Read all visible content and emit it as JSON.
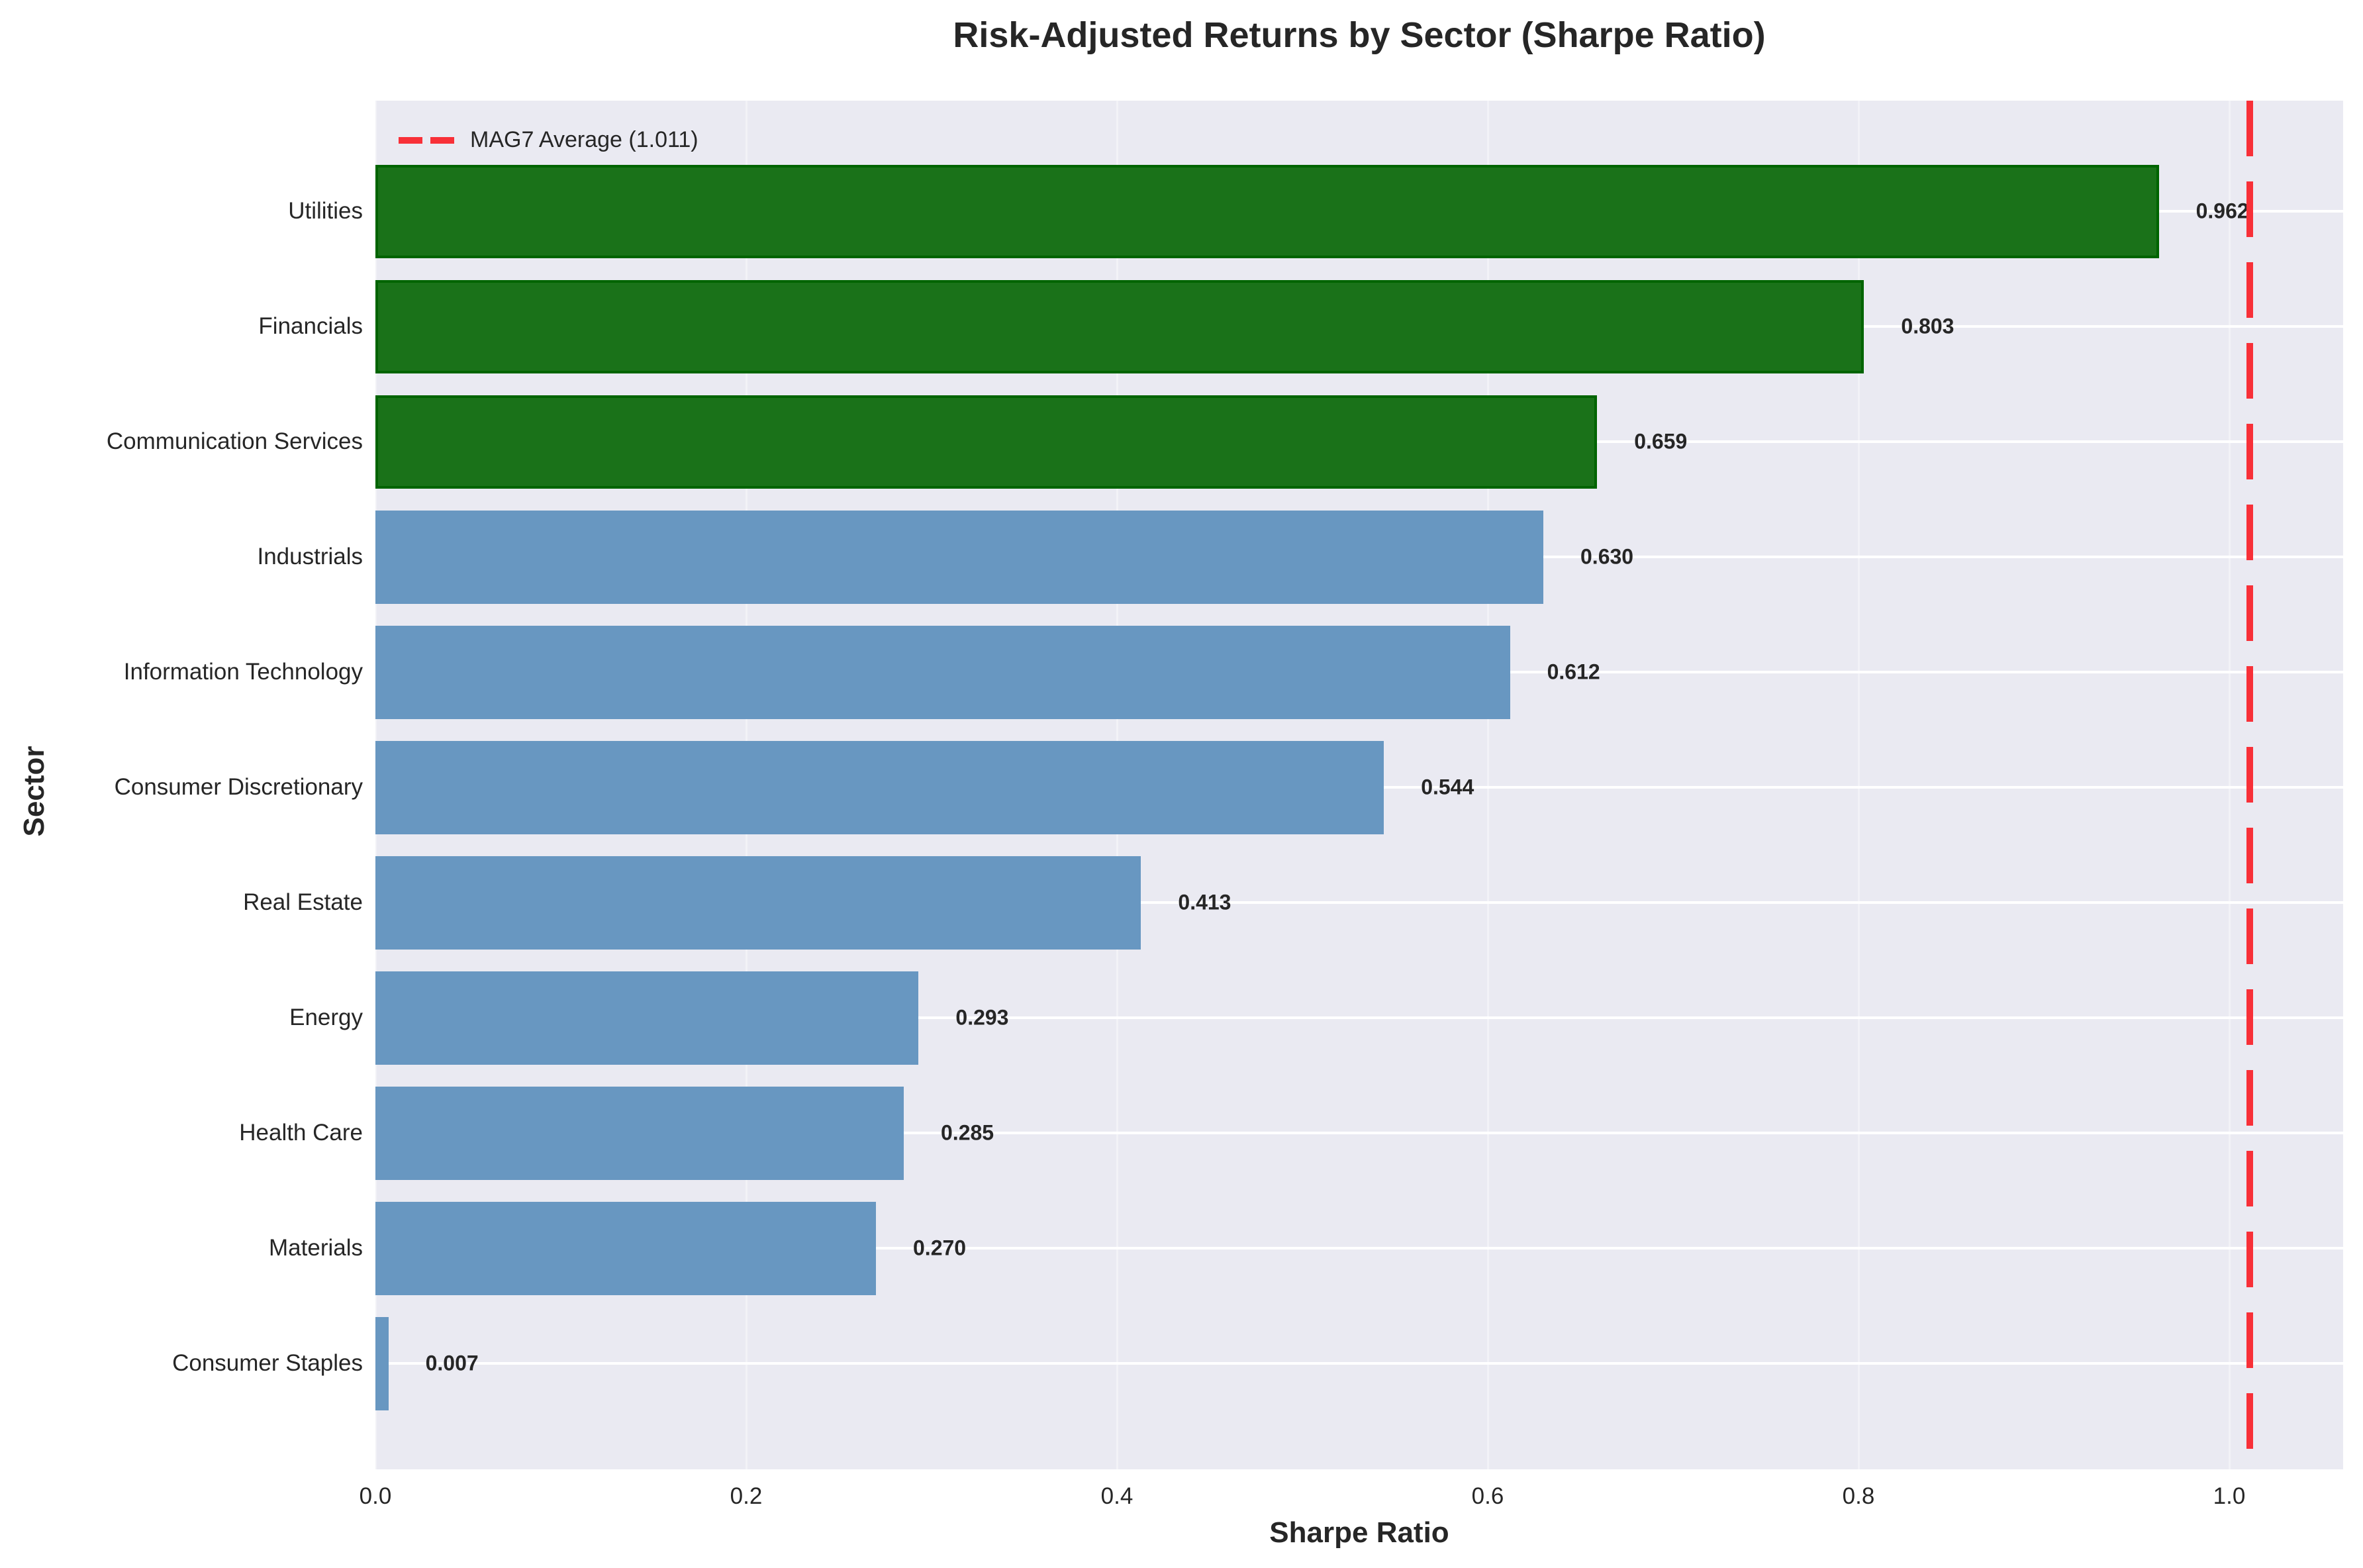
{
  "title": "Risk-Adjusted Returns by Sector (Sharpe Ratio)",
  "xlabel": "Sharpe Ratio",
  "ylabel": "Sector",
  "legend": {
    "label": "MAG7 Average (1.011)"
  },
  "xticks": [
    "0.0",
    "0.2",
    "0.4",
    "0.6",
    "0.8",
    "1.0"
  ],
  "colors": {
    "highlight": "#1a7219",
    "default": "#6897c1",
    "reference_line": "#f83038",
    "background": "#eaeaf2"
  },
  "bars": [
    {
      "label": "Utilities",
      "value": 0.962,
      "text": "0.962",
      "color": "green"
    },
    {
      "label": "Financials",
      "value": 0.803,
      "text": "0.803",
      "color": "green"
    },
    {
      "label": "Communication Services",
      "value": 0.659,
      "text": "0.659",
      "color": "green"
    },
    {
      "label": "Industrials",
      "value": 0.63,
      "text": "0.630",
      "color": "blue"
    },
    {
      "label": "Information Technology",
      "value": 0.612,
      "text": "0.612",
      "color": "blue"
    },
    {
      "label": "Consumer Discretionary",
      "value": 0.544,
      "text": "0.544",
      "color": "blue"
    },
    {
      "label": "Real Estate",
      "value": 0.413,
      "text": "0.413",
      "color": "blue"
    },
    {
      "label": "Energy",
      "value": 0.293,
      "text": "0.293",
      "color": "blue"
    },
    {
      "label": "Health Care",
      "value": 0.285,
      "text": "0.285",
      "color": "blue"
    },
    {
      "label": "Materials",
      "value": 0.27,
      "text": "0.270",
      "color": "blue"
    },
    {
      "label": "Consumer Staples",
      "value": 0.007,
      "text": "0.007",
      "color": "blue"
    }
  ],
  "chart_data": {
    "type": "bar",
    "orientation": "horizontal",
    "title": "Risk-Adjusted Returns by Sector (Sharpe Ratio)",
    "xlabel": "Sharpe Ratio",
    "ylabel": "Sector",
    "categories": [
      "Utilities",
      "Financials",
      "Communication Services",
      "Industrials",
      "Information Technology",
      "Consumer Discretionary",
      "Real Estate",
      "Energy",
      "Health Care",
      "Materials",
      "Consumer Staples"
    ],
    "values": [
      0.962,
      0.803,
      0.659,
      0.63,
      0.612,
      0.544,
      0.413,
      0.293,
      0.285,
      0.27,
      0.007
    ],
    "highlighted_top3": [
      "Utilities",
      "Financials",
      "Communication Services"
    ],
    "reference_line": {
      "label": "MAG7 Average (1.011)",
      "value": 1.011,
      "style": "dashed",
      "color": "#f83038"
    },
    "xlim": [
      0,
      1.062
    ],
    "xticks": [
      0.0,
      0.2,
      0.4,
      0.6,
      0.8,
      1.0
    ],
    "grid": true,
    "legend_position": "upper left"
  }
}
